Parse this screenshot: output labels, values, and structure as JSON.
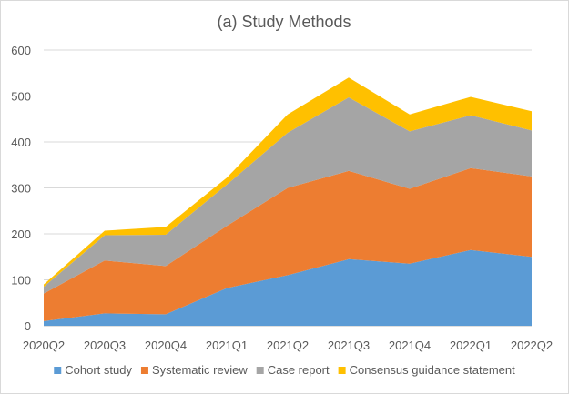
{
  "chart_data": {
    "type": "area",
    "stacked": true,
    "title": "(a) Study Methods",
    "xlabel": "",
    "ylabel": "",
    "categories": [
      "2020Q2",
      "2020Q3",
      "2020Q4",
      "2021Q1",
      "2021Q2",
      "2021Q3",
      "2021Q4",
      "2022Q1",
      "2022Q2"
    ],
    "ylim": [
      0,
      600
    ],
    "yticks": [
      0,
      100,
      200,
      300,
      400,
      500,
      600
    ],
    "grid": true,
    "legend_position": "bottom",
    "series": [
      {
        "name": "Cohort study",
        "color": "#5b9bd5",
        "values": [
          10,
          27,
          25,
          82,
          110,
          145,
          135,
          165,
          150
        ]
      },
      {
        "name": "Systematic review",
        "color": "#ed7d31",
        "values": [
          60,
          115,
          105,
          135,
          190,
          192,
          163,
          178,
          175
        ]
      },
      {
        "name": "Case report",
        "color": "#a5a5a5",
        "values": [
          15,
          55,
          68,
          90,
          120,
          160,
          125,
          115,
          100
        ]
      },
      {
        "name": "Consensus guidance statement",
        "color": "#ffc000",
        "values": [
          5,
          10,
          17,
          15,
          40,
          43,
          37,
          40,
          42
        ]
      }
    ]
  }
}
